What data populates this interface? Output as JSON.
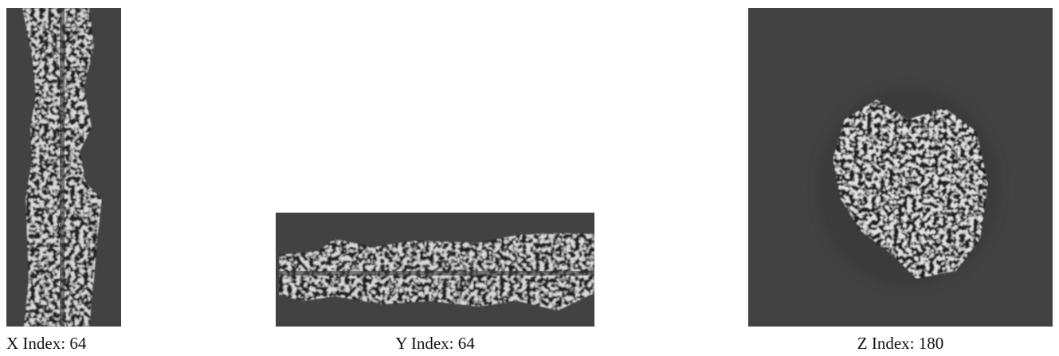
{
  "panels": [
    {
      "caption": "X Index: 64"
    },
    {
      "caption": "Y Index: 64"
    },
    {
      "caption": "Z Index: 180"
    }
  ]
}
